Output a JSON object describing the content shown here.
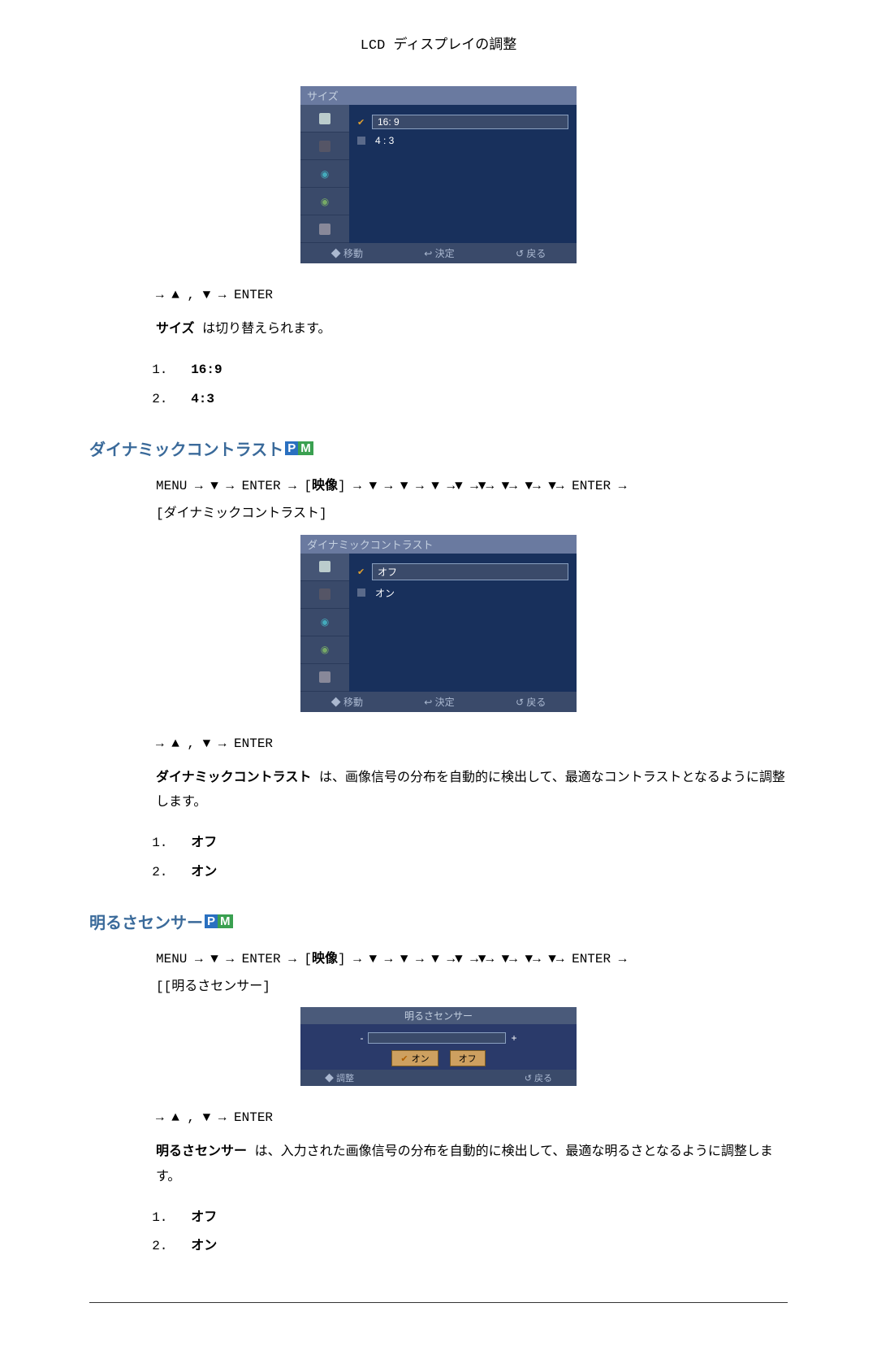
{
  "header": {
    "title": "LCD ディスプレイの調整"
  },
  "osd1": {
    "title": "サイズ",
    "items": [
      {
        "label": "16: 9",
        "selected": true,
        "check": true
      },
      {
        "label": "4 : 3",
        "selected": false,
        "check": false
      }
    ],
    "footer": {
      "move": "◆ 移動",
      "enter": "↩ 決定",
      "back": "↺ 戻る"
    }
  },
  "size": {
    "nav": "→ ▲ , ▼ → ENTER",
    "line": "サイズ は切り替えられます。",
    "bold": "サイズ",
    "items": [
      "16:9",
      "4:3"
    ]
  },
  "dc": {
    "heading": "ダイナミックコントラスト",
    "menuPath_a": "MENU → ▼ → ENTER → [",
    "menuPath_bold": "映像",
    "menuPath_b": "] → ▼ → ▼ → ▼ →▼ →▼→ ▼→ ▼→ ▼→ ENTER →",
    "menuPath_line2": "[ダイナミックコントラスト]",
    "osd": {
      "title": "ダイナミックコントラスト",
      "items": [
        {
          "label": "オフ",
          "selected": true,
          "check": true
        },
        {
          "label": "オン",
          "selected": false,
          "check": false
        }
      ],
      "footer": {
        "move": "◆ 移動",
        "enter": "↩ 決定",
        "back": "↺ 戻る"
      }
    },
    "nav": "→ ▲ , ▼ → ENTER",
    "para_bold": "ダイナミックコントラスト",
    "para_rest": " は、画像信号の分布を自動的に検出して、最適なコントラストとなるように調整します。",
    "items": [
      "オフ",
      "オン"
    ]
  },
  "bs": {
    "heading": "明るさセンサー",
    "menuPath_a": "MENU → ▼ → ENTER → [",
    "menuPath_bold": "映像",
    "menuPath_b": "] → ▼ → ▼ → ▼ →▼ →▼→ ▼→ ▼→ ▼→ ENTER →",
    "menuPath_line2": "[[明るさセンサー]",
    "osd": {
      "title": "明るさセンサー",
      "btn_on": "オン",
      "btn_off": "オフ",
      "foot_adjust": "◆ 調整",
      "foot_back": "↺ 戻る"
    },
    "nav": "→ ▲ , ▼ → ENTER",
    "para_bold": "明るさセンサー",
    "para_rest": " は、入力された画像信号の分布を自動的に検出して、最適な明るさとなるように調整します。",
    "items": [
      "オフ",
      "オン"
    ]
  },
  "badges": {
    "P": "P",
    "M": "M"
  }
}
